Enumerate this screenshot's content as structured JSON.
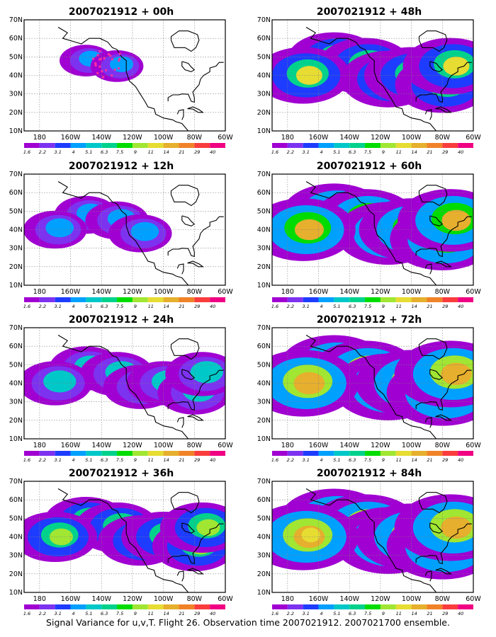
{
  "caption": "Signal Variance for u,v,T. Flight 26. Observation time 2007021912. 2007021700 ensemble.",
  "colors": {
    "levels": [
      "#a000d2",
      "#7d32f0",
      "#1e3cff",
      "#00a0ff",
      "#00c8c8",
      "#00d28c",
      "#00dc00",
      "#a0e632",
      "#e6dc32",
      "#e6af2d",
      "#f08228",
      "#fa3c3c",
      "#f00082"
    ],
    "land_outline": "#000000",
    "grid": "#808080",
    "observation_marks": "#ff30a0"
  },
  "chart_data": [
    {
      "type": "heatmap",
      "title": "2007021912 + 00h",
      "lead_hours": 0,
      "xlabel": "",
      "ylabel": "",
      "xlim_lon_deg": [
        -190,
        -60
      ],
      "ylim_lat_deg": [
        10,
        70
      ],
      "x_ticks": [
        "180",
        "160W",
        "140W",
        "120W",
        "100W",
        "80W",
        "60W"
      ],
      "y_ticks": [
        "10N",
        "20N",
        "30N",
        "40N",
        "50N",
        "60N",
        "70N"
      ],
      "colorbar_labels": [
        "1.6",
        "2.2",
        "3.1",
        "4",
        "5.1",
        "6.3",
        "7.5",
        "9",
        "11",
        "14",
        "21",
        "29",
        "40"
      ],
      "grid": true,
      "description": "signal variance field"
    },
    {
      "type": "heatmap",
      "title": "2007021912 + 12h",
      "lead_hours": 12,
      "xlabel": "",
      "ylabel": "",
      "xlim_lon_deg": [
        -190,
        -60
      ],
      "ylim_lat_deg": [
        10,
        70
      ],
      "x_ticks": [
        "180",
        "160W",
        "140W",
        "120W",
        "100W",
        "80W",
        "60W"
      ],
      "y_ticks": [
        "10N",
        "20N",
        "30N",
        "40N",
        "50N",
        "60N",
        "70N"
      ],
      "colorbar_labels": [
        "1.6",
        "2.2",
        "3.1",
        "4",
        "5.1",
        "6.3",
        "7.5",
        "9",
        "11",
        "14",
        "21",
        "29",
        "40"
      ],
      "grid": true
    },
    {
      "type": "heatmap",
      "title": "2007021912 + 24h",
      "lead_hours": 24,
      "xlabel": "",
      "ylabel": "",
      "xlim_lon_deg": [
        -190,
        -60
      ],
      "ylim_lat_deg": [
        10,
        70
      ],
      "x_ticks": [
        "180",
        "160W",
        "140W",
        "120W",
        "100W",
        "80W",
        "60W"
      ],
      "y_ticks": [
        "10N",
        "20N",
        "30N",
        "40N",
        "50N",
        "60N",
        "70N"
      ],
      "colorbar_labels": [
        "1.6",
        "2.2",
        "3.1",
        "4",
        "5.1",
        "6.3",
        "7.5",
        "9",
        "11",
        "14",
        "21",
        "29",
        "40"
      ],
      "grid": true
    },
    {
      "type": "heatmap",
      "title": "2007021912 + 36h",
      "lead_hours": 36,
      "xlabel": "",
      "ylabel": "",
      "xlim_lon_deg": [
        -190,
        -60
      ],
      "ylim_lat_deg": [
        10,
        70
      ],
      "x_ticks": [
        "180",
        "160W",
        "140W",
        "120W",
        "100W",
        "80W",
        "60W"
      ],
      "y_ticks": [
        "10N",
        "20N",
        "30N",
        "40N",
        "50N",
        "60N",
        "70N"
      ],
      "colorbar_labels": [
        "1.6",
        "2.2",
        "3.1",
        "4",
        "5.1",
        "6.3",
        "7.5",
        "9",
        "11",
        "14",
        "21",
        "29",
        "40"
      ],
      "grid": true
    },
    {
      "type": "heatmap",
      "title": "2007021912 + 48h",
      "lead_hours": 48,
      "xlabel": "",
      "ylabel": "",
      "xlim_lon_deg": [
        -190,
        -60
      ],
      "ylim_lat_deg": [
        10,
        70
      ],
      "x_ticks": [
        "180",
        "160W",
        "140W",
        "120W",
        "100W",
        "80W",
        "60W"
      ],
      "y_ticks": [
        "10N",
        "20N",
        "30N",
        "40N",
        "50N",
        "60N",
        "70N"
      ],
      "colorbar_labels": [
        "1.6",
        "2.2",
        "3.1",
        "4",
        "5.1",
        "6.3",
        "7.5",
        "9",
        "11",
        "14",
        "21",
        "29",
        "40"
      ],
      "grid": true
    },
    {
      "type": "heatmap",
      "title": "2007021912 + 60h",
      "lead_hours": 60,
      "xlabel": "",
      "ylabel": "",
      "xlim_lon_deg": [
        -190,
        -60
      ],
      "ylim_lat_deg": [
        10,
        70
      ],
      "x_ticks": [
        "180",
        "160W",
        "140W",
        "120W",
        "100W",
        "80W",
        "60W"
      ],
      "y_ticks": [
        "10N",
        "20N",
        "30N",
        "40N",
        "50N",
        "60N",
        "70N"
      ],
      "colorbar_labels": [
        "1.6",
        "2.2",
        "3.1",
        "4",
        "5.1",
        "6.3",
        "7.5",
        "9",
        "11",
        "14",
        "21",
        "29",
        "40"
      ],
      "grid": true
    },
    {
      "type": "heatmap",
      "title": "2007021912 + 72h",
      "lead_hours": 72,
      "xlabel": "",
      "ylabel": "",
      "xlim_lon_deg": [
        -190,
        -60
      ],
      "ylim_lat_deg": [
        10,
        70
      ],
      "x_ticks": [
        "180",
        "160W",
        "140W",
        "120W",
        "100W",
        "80W",
        "60W"
      ],
      "y_ticks": [
        "10N",
        "20N",
        "30N",
        "40N",
        "50N",
        "60N",
        "70N"
      ],
      "colorbar_labels": [
        "1.6",
        "2.2",
        "3.1",
        "4",
        "5.1",
        "6.3",
        "7.5",
        "9",
        "11",
        "14",
        "21",
        "29",
        "40"
      ],
      "grid": true
    },
    {
      "type": "heatmap",
      "title": "2007021912 + 84h",
      "lead_hours": 84,
      "xlabel": "",
      "ylabel": "",
      "xlim_lon_deg": [
        -190,
        -60
      ],
      "ylim_lat_deg": [
        10,
        70
      ],
      "x_ticks": [
        "180",
        "160W",
        "140W",
        "120W",
        "100W",
        "80W",
        "60W"
      ],
      "y_ticks": [
        "10N",
        "20N",
        "30N",
        "40N",
        "50N",
        "60N",
        "70N"
      ],
      "colorbar_labels": [
        "1.6",
        "2.2",
        "3.1",
        "4",
        "5.1",
        "6.3",
        "7.5",
        "9",
        "11",
        "14",
        "21",
        "29",
        "40"
      ],
      "grid": true
    }
  ]
}
